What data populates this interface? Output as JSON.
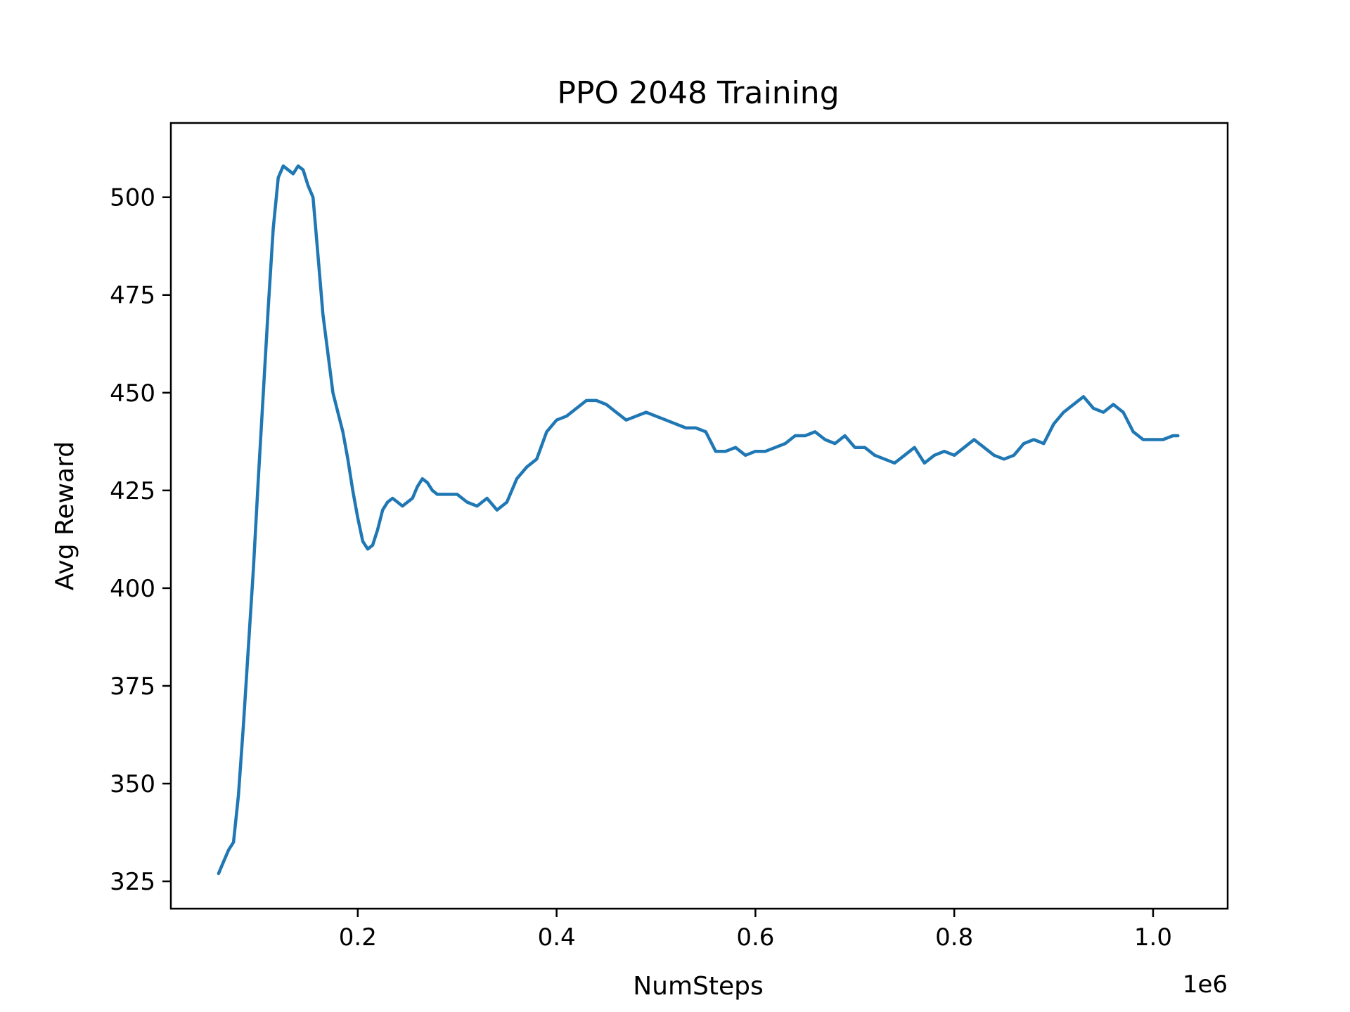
{
  "chart_data": {
    "type": "line",
    "title": "PPO 2048 Training",
    "xlabel": "NumSteps",
    "ylabel": "Avg Reward",
    "x_offset_label": "1e6",
    "xlim": [
      0.012,
      1.075
    ],
    "ylim": [
      318,
      519
    ],
    "xticks": [
      {
        "value": 0.2,
        "label": "0.2"
      },
      {
        "value": 0.4,
        "label": "0.4"
      },
      {
        "value": 0.6,
        "label": "0.6"
      },
      {
        "value": 0.8,
        "label": "0.8"
      },
      {
        "value": 1.0,
        "label": "1.0"
      }
    ],
    "yticks": [
      {
        "value": 325,
        "label": "325"
      },
      {
        "value": 350,
        "label": "350"
      },
      {
        "value": 375,
        "label": "375"
      },
      {
        "value": 400,
        "label": "400"
      },
      {
        "value": 425,
        "label": "425"
      },
      {
        "value": 450,
        "label": "450"
      },
      {
        "value": 475,
        "label": "475"
      },
      {
        "value": 500,
        "label": "500"
      }
    ],
    "grid": false,
    "line_color": "#1f77b4",
    "series": [
      {
        "x": [
          0.06,
          0.065,
          0.07,
          0.075,
          0.08,
          0.085,
          0.09,
          0.095,
          0.1,
          0.105,
          0.11,
          0.115,
          0.12,
          0.125,
          0.13,
          0.135,
          0.14,
          0.145,
          0.15,
          0.155,
          0.16,
          0.165,
          0.17,
          0.175,
          0.18,
          0.185,
          0.19,
          0.195,
          0.2,
          0.205,
          0.21,
          0.215,
          0.22,
          0.225,
          0.23,
          0.235,
          0.24,
          0.245,
          0.25,
          0.255,
          0.26,
          0.265,
          0.27,
          0.275,
          0.28,
          0.29,
          0.3,
          0.31,
          0.32,
          0.33,
          0.34,
          0.35,
          0.36,
          0.37,
          0.38,
          0.39,
          0.4,
          0.41,
          0.42,
          0.43,
          0.44,
          0.45,
          0.46,
          0.47,
          0.48,
          0.49,
          0.5,
          0.51,
          0.52,
          0.53,
          0.54,
          0.55,
          0.56,
          0.57,
          0.58,
          0.59,
          0.6,
          0.61,
          0.62,
          0.63,
          0.64,
          0.65,
          0.66,
          0.67,
          0.68,
          0.69,
          0.7,
          0.71,
          0.72,
          0.73,
          0.74,
          0.75,
          0.76,
          0.77,
          0.78,
          0.79,
          0.8,
          0.81,
          0.82,
          0.83,
          0.84,
          0.85,
          0.86,
          0.87,
          0.88,
          0.89,
          0.9,
          0.91,
          0.92,
          0.93,
          0.94,
          0.95,
          0.96,
          0.97,
          0.98,
          0.99,
          1.0,
          1.01,
          1.02,
          1.025
        ],
        "y": [
          327,
          330,
          333,
          335,
          347,
          365,
          385,
          405,
          428,
          450,
          472,
          492,
          505,
          508,
          507,
          506,
          508,
          507,
          503,
          500,
          485,
          470,
          460,
          450,
          445,
          440,
          433,
          425,
          418,
          412,
          410,
          411,
          415,
          420,
          422,
          423,
          422,
          421,
          422,
          423,
          426,
          428,
          427,
          425,
          424,
          424,
          424,
          422,
          421,
          423,
          420,
          422,
          428,
          431,
          433,
          440,
          443,
          444,
          446,
          448,
          448,
          447,
          445,
          443,
          444,
          445,
          444,
          443,
          442,
          441,
          441,
          440,
          435,
          435,
          436,
          434,
          435,
          435,
          436,
          437,
          439,
          439,
          440,
          438,
          437,
          439,
          436,
          436,
          434,
          433,
          432,
          434,
          436,
          432,
          434,
          435,
          434,
          436,
          438,
          436,
          434,
          433,
          434,
          437,
          438,
          437,
          442,
          445,
          447,
          449,
          446,
          445,
          447,
          445,
          440,
          438,
          438,
          438,
          439,
          439
        ]
      }
    ]
  }
}
